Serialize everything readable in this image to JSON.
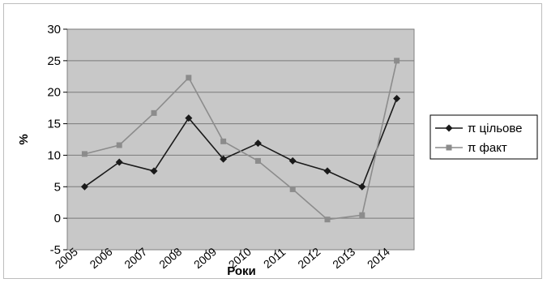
{
  "chart_data": {
    "type": "line",
    "title": "",
    "xlabel": "Роки",
    "ylabel": "%",
    "x": [
      "2005",
      "2006",
      "2007",
      "2008",
      "2009",
      "2010",
      "2011",
      "2012",
      "2013",
      "2014"
    ],
    "yticks": [
      "-5",
      "0",
      "5",
      "10",
      "15",
      "20",
      "25",
      "30"
    ],
    "ylim": [
      -5,
      30
    ],
    "grid": true,
    "legend_position": "right",
    "series": [
      {
        "name": "π цільове",
        "color": "#1a1a1a",
        "marker": "diamond",
        "values": [
          5.0,
          8.9,
          7.5,
          15.9,
          9.4,
          11.9,
          9.1,
          7.5,
          5.0,
          19.0
        ]
      },
      {
        "name": "π факт",
        "color": "#8c8c8c",
        "marker": "square",
        "values": [
          10.2,
          11.6,
          16.7,
          22.3,
          12.2,
          9.1,
          4.6,
          -0.2,
          0.5,
          25.0
        ]
      }
    ]
  }
}
